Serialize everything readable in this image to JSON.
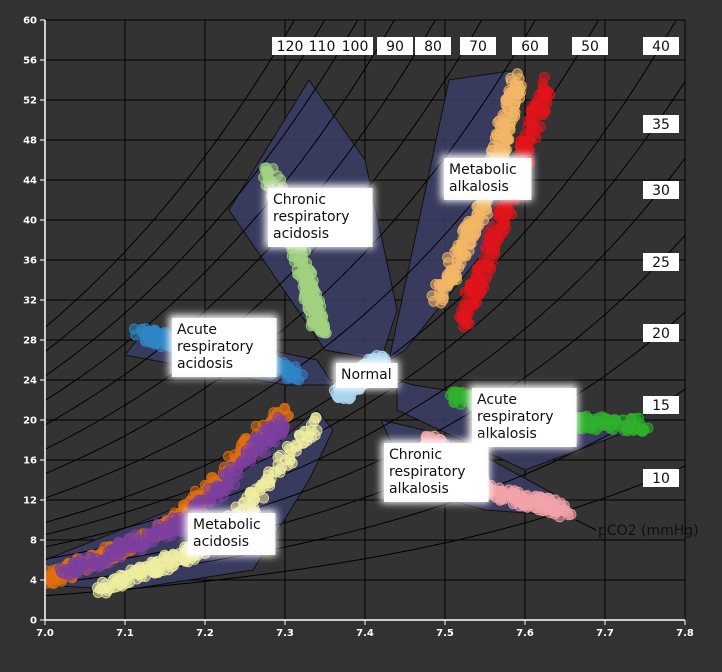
{
  "chart_data": {
    "type": "scatter",
    "title": "",
    "xlabel": "",
    "ylabel": "",
    "xlim": [
      7.0,
      7.8
    ],
    "ylim": [
      0,
      60
    ],
    "x_ticks": [
      "7.0",
      "7.1",
      "7.2",
      "7.3",
      "7.4",
      "7.5",
      "7.6",
      "7.7",
      "7.8"
    ],
    "y_ticks": [
      "0",
      "4",
      "8",
      "12",
      "16",
      "20",
      "24",
      "28",
      "32",
      "36",
      "40",
      "44",
      "48",
      "52",
      "56",
      "60"
    ],
    "grid": true,
    "isopleth_title": "pCO2 (mmHg)",
    "pco2_isopleths": [
      {
        "label": "120",
        "value": 120
      },
      {
        "label": "110",
        "value": 110
      },
      {
        "label": "100",
        "value": 100
      },
      {
        "label": "90",
        "value": 90
      },
      {
        "label": "80",
        "value": 80
      },
      {
        "label": "70",
        "value": 70
      },
      {
        "label": "60",
        "value": 60
      },
      {
        "label": "50",
        "value": 50
      },
      {
        "label": "40",
        "value": 40
      },
      {
        "label": "35",
        "value": 35
      },
      {
        "label": "30",
        "value": 30
      },
      {
        "label": "25",
        "value": 25
      },
      {
        "label": "20",
        "value": 20
      },
      {
        "label": "15",
        "value": 15
      },
      {
        "label": "10",
        "value": 10
      }
    ],
    "region_labels": [
      {
        "lines": [
          "Chronic",
          "respiratory",
          "acidosis"
        ],
        "x": 7.285,
        "y": 42.0
      },
      {
        "lines": [
          "Acute",
          "respiratory",
          "acidosis"
        ],
        "x": 7.165,
        "y": 29.0
      },
      {
        "lines": [
          "Normal"
        ],
        "x": 7.37,
        "y": 24.5
      },
      {
        "lines": [
          "Metabolic",
          "alkalosis"
        ],
        "x": 7.505,
        "y": 45.0
      },
      {
        "lines": [
          "Acute",
          "respiratory",
          "alkalosis"
        ],
        "x": 7.54,
        "y": 22.0
      },
      {
        "lines": [
          "Chronic",
          "respiratory",
          "alkalosis"
        ],
        "x": 7.43,
        "y": 16.5
      },
      {
        "lines": [
          "Metabolic",
          "acidosis"
        ],
        "x": 7.185,
        "y": 9.5
      }
    ],
    "series": [
      {
        "color": "#a3d17f",
        "x": [
          7.28,
          7.32,
          7.345
        ],
        "y": [
          45,
          36,
          29
        ]
      },
      {
        "color": "#2f86c6",
        "x": [
          7.12,
          7.21,
          7.32
        ],
        "y": [
          28.5,
          27,
          24.5
        ]
      },
      {
        "color": "#a8d4ee",
        "x": [
          7.37,
          7.42
        ],
        "y": [
          22.5,
          26
        ]
      },
      {
        "color": "#f2b766",
        "x": [
          7.49,
          7.55,
          7.59
        ],
        "y": [
          32,
          42,
          54
        ]
      },
      {
        "color": "#e0141b",
        "x": [
          7.52,
          7.58,
          7.63
        ],
        "y": [
          29.5,
          42,
          54
        ]
      },
      {
        "color": "#2fb12c",
        "x": [
          7.51,
          7.6,
          7.75
        ],
        "y": [
          22.5,
          20,
          19.5
        ]
      },
      {
        "color": "#f2a3a8",
        "x": [
          7.48,
          7.55,
          7.65
        ],
        "y": [
          18,
          13,
          11
        ]
      },
      {
        "color": "#e06f10",
        "x": [
          7.0,
          7.15,
          7.3
        ],
        "y": [
          4,
          9,
          21
        ]
      },
      {
        "color": "#7b3fa0",
        "x": [
          7.02,
          7.18,
          7.3
        ],
        "y": [
          4.5,
          10,
          20
        ]
      },
      {
        "color": "#eeeda0",
        "x": [
          7.07,
          7.22,
          7.34
        ],
        "y": [
          3,
          8,
          20
        ]
      }
    ]
  }
}
